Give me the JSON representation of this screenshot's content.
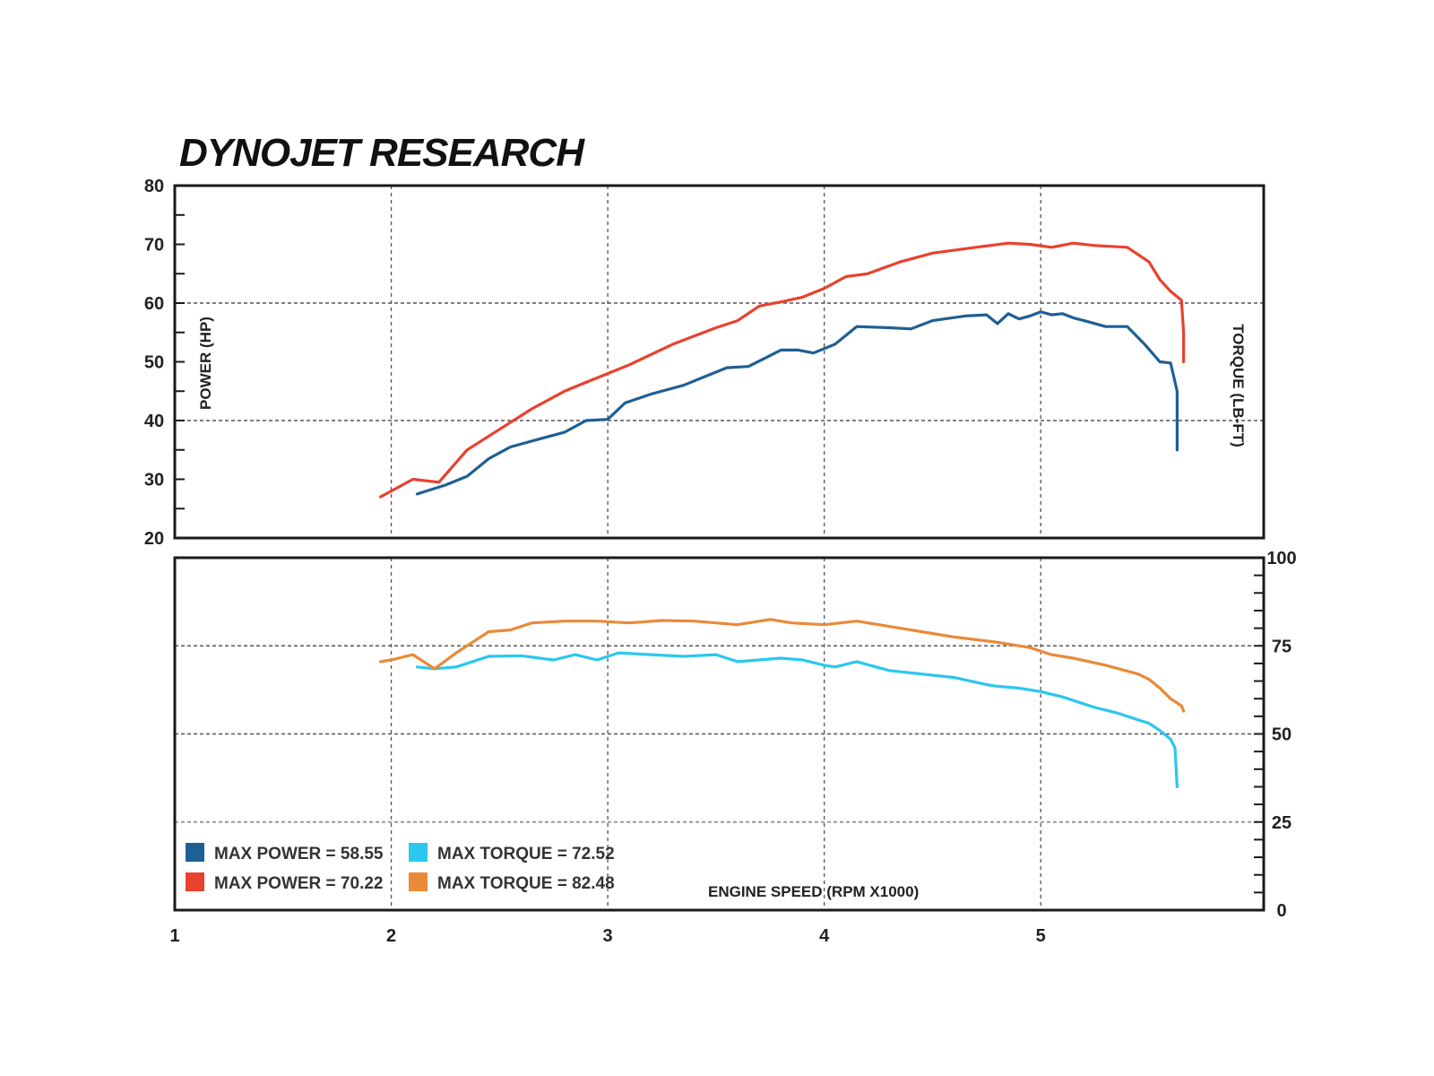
{
  "chart_data": {
    "type": "line",
    "title": "DYNOJET RESEARCH",
    "xlabel": "ENGINE SPEED (RPM X1000)",
    "x_ticks": [
      "1",
      "2",
      "3",
      "4",
      "5"
    ],
    "xlim": [
      1,
      6.03
    ],
    "colors": {
      "blue": "#1f5f95",
      "red": "#e8412e",
      "cyan": "#2bc7ef",
      "orange": "#ea8a38"
    },
    "power_panel": {
      "ylabel": "POWER (HP)",
      "ylim": [
        20,
        80
      ],
      "y_ticks": [
        "20",
        "30",
        "40",
        "50",
        "60",
        "70",
        "80"
      ],
      "grid_y": [
        40,
        60
      ]
    },
    "torque_panel": {
      "ylabel": "TORQUE (LB-FT)",
      "ylim": [
        0,
        100
      ],
      "y_ticks": [
        "0",
        "25",
        "50",
        "75",
        "100"
      ],
      "grid_y": [
        50,
        75
      ],
      "grid_y_light": [
        25
      ]
    },
    "series": [
      {
        "legend": "MAX POWER = 58.55",
        "panel": "power",
        "color": "blue",
        "x": [
          2.12,
          2.25,
          2.35,
          2.45,
          2.55,
          2.7,
          2.8,
          2.9,
          3.0,
          3.08,
          3.2,
          3.35,
          3.45,
          3.55,
          3.65,
          3.72,
          3.8,
          3.88,
          3.95,
          4.05,
          4.15,
          4.3,
          4.4,
          4.5,
          4.65,
          4.75,
          4.8,
          4.85,
          4.9,
          4.95,
          5.0,
          5.05,
          5.1,
          5.15,
          5.2,
          5.3,
          5.4,
          5.48,
          5.55,
          5.6,
          5.63,
          5.63,
          5.63
        ],
        "y": [
          27.5,
          29.0,
          30.5,
          33.5,
          35.5,
          37.0,
          38.0,
          40.0,
          40.2,
          43.0,
          44.5,
          46.0,
          47.5,
          49.0,
          49.2,
          50.5,
          52.0,
          52.0,
          51.5,
          53.0,
          56.0,
          55.8,
          55.6,
          57.0,
          57.8,
          58.0,
          56.5,
          58.2,
          57.3,
          57.8,
          58.5,
          58.0,
          58.2,
          57.5,
          57.0,
          56.0,
          56.0,
          53.0,
          50.0,
          49.8,
          45.0,
          40.0,
          35.0
        ]
      },
      {
        "legend": "MAX POWER = 70.22",
        "panel": "power",
        "color": "red",
        "x": [
          1.95,
          2.0,
          2.1,
          2.22,
          2.35,
          2.5,
          2.65,
          2.8,
          2.9,
          3.0,
          3.1,
          3.3,
          3.5,
          3.6,
          3.7,
          3.8,
          3.9,
          4.0,
          4.1,
          4.2,
          4.35,
          4.5,
          4.7,
          4.85,
          4.95,
          5.05,
          5.15,
          5.25,
          5.4,
          5.5,
          5.55,
          5.6,
          5.65,
          5.66,
          5.66
        ],
        "y": [
          27.0,
          28.0,
          30.0,
          29.5,
          35.0,
          38.5,
          42.0,
          45.0,
          46.5,
          48.0,
          49.5,
          53.0,
          55.8,
          57.0,
          59.5,
          60.2,
          61.0,
          62.5,
          64.5,
          65.0,
          67.0,
          68.5,
          69.5,
          70.2,
          70.0,
          69.5,
          70.2,
          69.8,
          69.5,
          67.0,
          64.0,
          62.0,
          60.5,
          55.0,
          50.0
        ]
      },
      {
        "legend": "MAX TORQUE = 72.52",
        "panel": "torque",
        "color": "cyan",
        "x": [
          2.12,
          2.2,
          2.3,
          2.45,
          2.6,
          2.75,
          2.85,
          2.95,
          3.05,
          3.2,
          3.35,
          3.5,
          3.6,
          3.7,
          3.8,
          3.9,
          4.0,
          4.05,
          4.15,
          4.3,
          4.45,
          4.6,
          4.75,
          4.8,
          4.9,
          5.0,
          5.1,
          5.25,
          5.35,
          5.45,
          5.5,
          5.55,
          5.6,
          5.62,
          5.63
        ],
        "y": [
          69.0,
          68.5,
          69.0,
          72.0,
          72.2,
          71.0,
          72.5,
          71.0,
          73.0,
          72.5,
          72.0,
          72.5,
          70.5,
          71.0,
          71.5,
          71.0,
          69.5,
          69.0,
          70.5,
          68.0,
          67.0,
          66.0,
          64.0,
          63.5,
          63.0,
          62.0,
          60.5,
          57.5,
          56.0,
          54.0,
          53.0,
          51.0,
          48.5,
          46.0,
          35.0
        ]
      },
      {
        "legend": "MAX TORQUE = 82.48",
        "panel": "torque",
        "color": "orange",
        "x": [
          1.95,
          2.0,
          2.1,
          2.2,
          2.3,
          2.45,
          2.55,
          2.65,
          2.8,
          2.95,
          3.1,
          3.25,
          3.4,
          3.6,
          3.75,
          3.85,
          4.0,
          4.15,
          4.3,
          4.45,
          4.6,
          4.8,
          4.95,
          5.05,
          5.15,
          5.3,
          5.45,
          5.5,
          5.55,
          5.6,
          5.65,
          5.66
        ],
        "y": [
          70.5,
          71.0,
          72.5,
          68.5,
          73.0,
          79.0,
          79.5,
          81.5,
          82.0,
          82.0,
          81.5,
          82.2,
          82.0,
          81.0,
          82.5,
          81.5,
          81.0,
          82.0,
          80.5,
          79.0,
          77.5,
          76.0,
          74.5,
          72.5,
          71.5,
          69.5,
          67.0,
          65.5,
          63.0,
          60.0,
          58.0,
          56.5
        ]
      }
    ]
  }
}
